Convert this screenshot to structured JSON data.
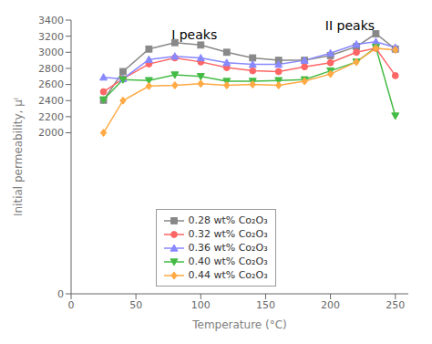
{
  "chart_data": {
    "type": "line",
    "x": [
      25,
      40,
      60,
      80,
      100,
      120,
      140,
      160,
      180,
      200,
      220,
      235,
      250
    ],
    "series": [
      {
        "name": "0.28 wt% Co₂O₃",
        "color": "#888888",
        "marker": "square",
        "values": [
          2405,
          2760,
          3040,
          3120,
          3090,
          3000,
          2930,
          2900,
          2900,
          2960,
          3070,
          3230,
          3040
        ]
      },
      {
        "name": "0.32 wt% Co₂O₃",
        "color": "#ff6666",
        "marker": "circle",
        "values": [
          2510,
          2670,
          2855,
          2930,
          2880,
          2810,
          2770,
          2760,
          2820,
          2870,
          3000,
          3050,
          2710
        ]
      },
      {
        "name": "0.36 wt% Co₂O₃",
        "color": "#8888ff",
        "marker": "triangle-up",
        "values": [
          2690,
          2670,
          2910,
          2950,
          2930,
          2870,
          2850,
          2850,
          2900,
          2990,
          3100,
          3130,
          3060
        ]
      },
      {
        "name": "0.40 wt% Co₂O₃",
        "color": "#44bb44",
        "marker": "triangle-down",
        "values": [
          2410,
          2660,
          2650,
          2720,
          2700,
          2640,
          2640,
          2650,
          2660,
          2770,
          2880,
          3060,
          2210
        ]
      },
      {
        "name": "0.44 wt% Co₂O₃",
        "color": "#ffaa44",
        "marker": "diamond",
        "values": [
          2000,
          2400,
          2580,
          2590,
          2610,
          2590,
          2600,
          2590,
          2640,
          2730,
          2880,
          3050,
          3030
        ]
      }
    ],
    "xlim": [
      0,
      260
    ],
    "ylim": [
      0,
      3400
    ],
    "xticks": [
      0,
      50,
      100,
      150,
      200,
      250
    ],
    "yticks": [
      0,
      2000,
      2200,
      2400,
      2600,
      2800,
      3000,
      3200,
      3400
    ],
    "xlabel": "Temperature (°C)",
    "ylabel": "Initial permeability, μᴵ",
    "annotations": [
      {
        "text": "I peaks",
        "x": 95,
        "y": 3220
      },
      {
        "text": "II peaks",
        "x": 215,
        "y": 3330
      }
    ],
    "grid": false,
    "legend": "bottom"
  }
}
